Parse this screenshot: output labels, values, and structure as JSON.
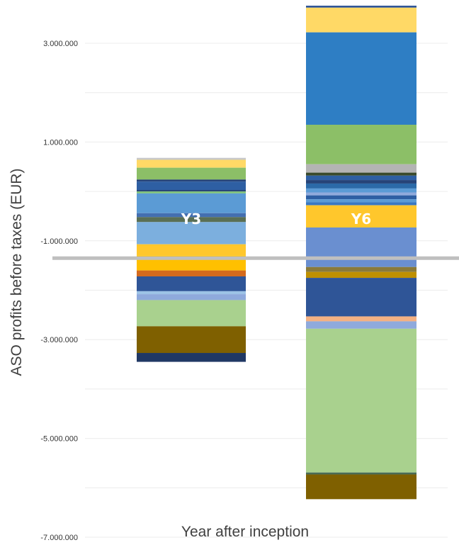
{
  "chart_data": {
    "type": "bar",
    "stacked": true,
    "title": "",
    "xlabel": "Year after inception",
    "ylabel": "ASO profits before taxes (EUR)",
    "ylim": [
      -7000000,
      3800000
    ],
    "yticks": [
      -7000000,
      -5000000,
      -3000000,
      -1000000,
      1000000,
      3000000
    ],
    "ytick_labels": [
      "-7.000.000",
      "-5.000.000",
      "-3.000.000",
      "-1.000.000",
      "1.000.000",
      "3.000.000"
    ],
    "grid": true,
    "reference_line": {
      "y": -1350000,
      "color": "#bfbfbf"
    },
    "categories": [
      "Y3",
      "Y6"
    ],
    "bars": [
      {
        "label": "Y3",
        "segments": [
          {
            "from": 640000,
            "to": 680000,
            "color": "#c9c9c9"
          },
          {
            "from": 480000,
            "to": 640000,
            "color": "#ffd966"
          },
          {
            "from": 240000,
            "to": 480000,
            "color": "#8cbf67"
          },
          {
            "from": 200000,
            "to": 240000,
            "color": "#264478"
          },
          {
            "from": 30000,
            "to": 200000,
            "color": "#2e5fa3"
          },
          {
            "from": 0,
            "to": 30000,
            "color": "#264478"
          },
          {
            "from": -40000,
            "to": 0,
            "color": "#7fc27a"
          },
          {
            "from": -440000,
            "to": -40000,
            "color": "#5b9bd5"
          },
          {
            "from": -520000,
            "to": -440000,
            "color": "#446fb0"
          },
          {
            "from": -620000,
            "to": -520000,
            "color": "#5a6f54"
          },
          {
            "from": -1070000,
            "to": -620000,
            "color": "#7cafde"
          },
          {
            "from": -1300000,
            "to": -1070000,
            "color": "#ffc72c"
          },
          {
            "from": -1600000,
            "to": -1300000,
            "color": "#ffc000"
          },
          {
            "from": -1720000,
            "to": -1600000,
            "color": "#d46a1d"
          },
          {
            "from": -2020000,
            "to": -1720000,
            "color": "#2f5597"
          },
          {
            "from": -2080000,
            "to": -2020000,
            "color": "#9dc3e6"
          },
          {
            "from": -2200000,
            "to": -2080000,
            "color": "#8faadc"
          },
          {
            "from": -2730000,
            "to": -2200000,
            "color": "#a9d18e"
          },
          {
            "from": -3270000,
            "to": -2730000,
            "color": "#7f6000"
          },
          {
            "from": -3450000,
            "to": -3270000,
            "color": "#203864"
          }
        ]
      },
      {
        "label": "Y6",
        "segments": [
          {
            "from": 3720000,
            "to": 3760000,
            "color": "#2f5597"
          },
          {
            "from": 3220000,
            "to": 3720000,
            "color": "#ffd966"
          },
          {
            "from": 1350000,
            "to": 3220000,
            "color": "#2e7ec4"
          },
          {
            "from": 550000,
            "to": 1350000,
            "color": "#8cbf67"
          },
          {
            "from": 380000,
            "to": 550000,
            "color": "#b4b4b4"
          },
          {
            "from": 320000,
            "to": 380000,
            "color": "#3a4a2c"
          },
          {
            "from": 230000,
            "to": 320000,
            "color": "#2e5fa3"
          },
          {
            "from": 160000,
            "to": 230000,
            "color": "#264478"
          },
          {
            "from": 60000,
            "to": 160000,
            "color": "#2b6aa8"
          },
          {
            "from": -20000,
            "to": 60000,
            "color": "#5b9bd5"
          },
          {
            "from": -80000,
            "to": -20000,
            "color": "#8faadc"
          },
          {
            "from": -160000,
            "to": -80000,
            "color": "#2e5fa3"
          },
          {
            "from": -220000,
            "to": -160000,
            "color": "#5b9bd5"
          },
          {
            "from": -280000,
            "to": -220000,
            "color": "#3a78c2"
          },
          {
            "from": -730000,
            "to": -280000,
            "color": "#ffc72c"
          },
          {
            "from": -1530000,
            "to": -730000,
            "color": "#6a8fd0"
          },
          {
            "from": -1630000,
            "to": -1530000,
            "color": "#8a7a3a"
          },
          {
            "from": -1750000,
            "to": -1630000,
            "color": "#bf9000"
          },
          {
            "from": -2530000,
            "to": -1750000,
            "color": "#2f5597"
          },
          {
            "from": -2630000,
            "to": -2530000,
            "color": "#f4b183"
          },
          {
            "from": -2780000,
            "to": -2630000,
            "color": "#8faadc"
          },
          {
            "from": -5690000,
            "to": -2780000,
            "color": "#a9d18e"
          },
          {
            "from": -5730000,
            "to": -5690000,
            "color": "#4a6b55"
          },
          {
            "from": -6230000,
            "to": -5730000,
            "color": "#7f6000"
          }
        ]
      }
    ]
  }
}
